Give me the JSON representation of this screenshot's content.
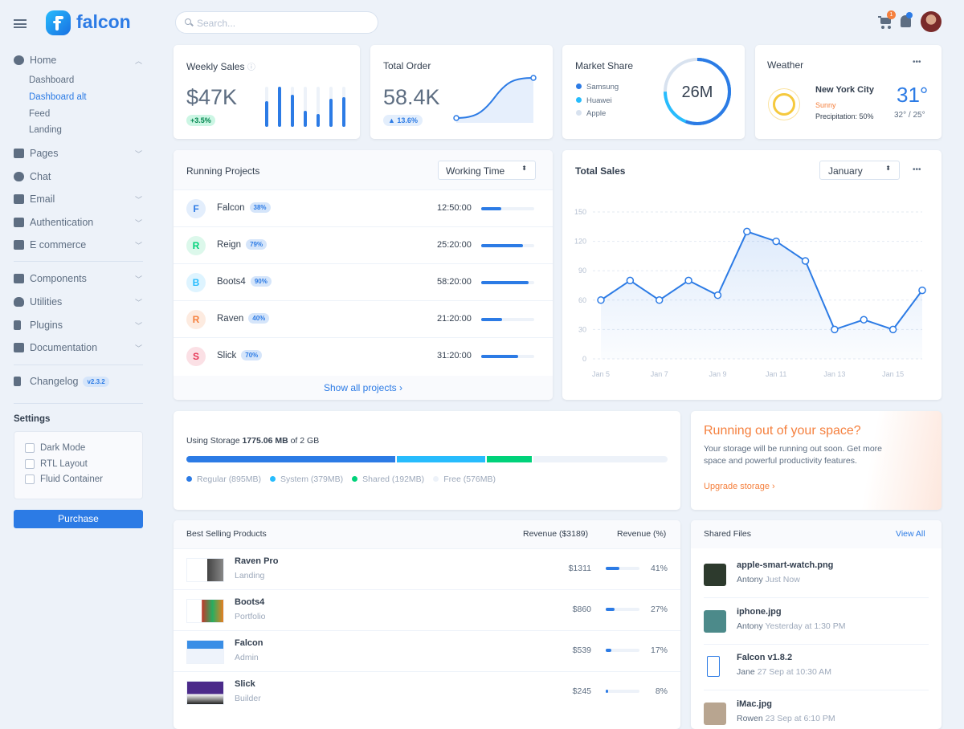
{
  "brand": "falcon",
  "search": {
    "placeholder": "Search..."
  },
  "header": {
    "cart_count": "1"
  },
  "sidebar": {
    "home": "Home",
    "home_items": [
      "Dashboard",
      "Dashboard alt",
      "Feed",
      "Landing"
    ],
    "items": [
      "Pages",
      "Chat",
      "Email",
      "Authentication",
      "E commerce"
    ],
    "items2": [
      "Components",
      "Utilities",
      "Plugins",
      "Documentation"
    ],
    "changelog": "Changelog",
    "version": "v2.3.2",
    "settings_title": "Settings",
    "settings": [
      "Dark Mode",
      "RTL Layout",
      "Fluid Container"
    ],
    "purchase": "Purchase"
  },
  "weekly_sales": {
    "title": "Weekly Sales",
    "value": "$47K",
    "change": "+3.5%",
    "bars": [
      0.65,
      1.0,
      0.8,
      0.4,
      0.33,
      0.7,
      0.75
    ]
  },
  "total_order": {
    "title": "Total Order",
    "value": "58.4K",
    "change": "13.6%"
  },
  "market_share": {
    "title": "Market Share",
    "total": "26M",
    "legend": [
      {
        "name": "Samsung",
        "color": "#2c7be5"
      },
      {
        "name": "Huawei",
        "color": "#27bcfd"
      },
      {
        "name": "Apple",
        "color": "#d8e2ef"
      }
    ]
  },
  "weather": {
    "title": "Weather",
    "city": "New York City",
    "condition": "Sunny",
    "precipitation": "Precipitation: 50%",
    "temp": "31°",
    "range": "32° / 25°"
  },
  "projects": {
    "title": "Running Projects",
    "select": "Working Time",
    "show_all": "Show all projects ›",
    "rows": [
      {
        "initial": "F",
        "name": "Falcon",
        "pct": "38%",
        "time": "12:50:00",
        "progress": 38,
        "color": "#2c7be5",
        "bg": "#e3eefc"
      },
      {
        "initial": "R",
        "name": "Reign",
        "pct": "79%",
        "time": "25:20:00",
        "progress": 79,
        "color": "#00d27a",
        "bg": "#dcf8eb"
      },
      {
        "initial": "B",
        "name": "Boots4",
        "pct": "90%",
        "time": "58:20:00",
        "progress": 90,
        "color": "#27bcfd",
        "bg": "#def4ff"
      },
      {
        "initial": "R",
        "name": "Raven",
        "pct": "40%",
        "time": "21:20:00",
        "progress": 40,
        "color": "#f5803e",
        "bg": "#fdebe0"
      },
      {
        "initial": "S",
        "name": "Slick",
        "pct": "70%",
        "time": "31:20:00",
        "progress": 70,
        "color": "#e63757",
        "bg": "#fbe0e5"
      }
    ]
  },
  "total_sales": {
    "title": "Total Sales",
    "select": "January"
  },
  "chart_data": {
    "type": "line",
    "x": [
      "Jan 5",
      "Jan 6",
      "Jan 7",
      "Jan 8",
      "Jan 9",
      "Jan 10",
      "Jan 11",
      "Jan 12",
      "Jan 13",
      "Jan 14",
      "Jan 15",
      "Jan 16"
    ],
    "values": [
      60,
      80,
      60,
      80,
      65,
      130,
      120,
      100,
      30,
      40,
      30,
      70
    ],
    "x_tick_labels": [
      "Jan 5",
      "Jan 7",
      "Jan 9",
      "Jan 11",
      "Jan 13",
      "Jan 15"
    ],
    "y_ticks": [
      0,
      30,
      60,
      90,
      120,
      150
    ],
    "ylim": [
      0,
      150
    ],
    "grid": true,
    "color": "#2c7be5"
  },
  "storage": {
    "label": "Using Storage",
    "used": "1775.06 MB",
    "total": "of 2 GB",
    "segments": [
      {
        "name": "Regular (895MB)",
        "mb": 895,
        "color": "#2c7be5"
      },
      {
        "name": "System (379MB)",
        "mb": 379,
        "color": "#27bcfd"
      },
      {
        "name": "Shared (192MB)",
        "mb": 192,
        "color": "#00d27a"
      },
      {
        "name": "Free (576MB)",
        "mb": 576,
        "color": "#edf2f9"
      }
    ]
  },
  "upgrade": {
    "title": "Running out of your space?",
    "text": "Your storage will be running out soon. Get more space and powerful productivity features.",
    "link": "Upgrade storage ›"
  },
  "products": {
    "title": "Best Selling Products",
    "col1": "Revenue ($3189)",
    "col2": "Revenue (%)",
    "rows": [
      {
        "name": "Raven Pro",
        "type": "Landing",
        "revenue": "$1311",
        "pct": "41%",
        "p": 41
      },
      {
        "name": "Boots4",
        "type": "Portfolio",
        "revenue": "$860",
        "pct": "27%",
        "p": 27
      },
      {
        "name": "Falcon",
        "type": "Admin",
        "revenue": "$539",
        "pct": "17%",
        "p": 17
      },
      {
        "name": "Slick",
        "type": "Builder",
        "revenue": "$245",
        "pct": "8%",
        "p": 8
      }
    ]
  },
  "files": {
    "title": "Shared Files",
    "view_all": "View All",
    "rows": [
      {
        "name": "apple-smart-watch.png",
        "user": "Antony",
        "time": "Just Now"
      },
      {
        "name": "iphone.jpg",
        "user": "Antony",
        "time": "Yesterday at 1:30 PM"
      },
      {
        "name": "Falcon v1.8.2",
        "user": "Jane",
        "time": "27 Sep at 10:30 AM"
      },
      {
        "name": "iMac.jpg",
        "user": "Rowen",
        "time": "23 Sep at 6:10 PM"
      }
    ]
  }
}
